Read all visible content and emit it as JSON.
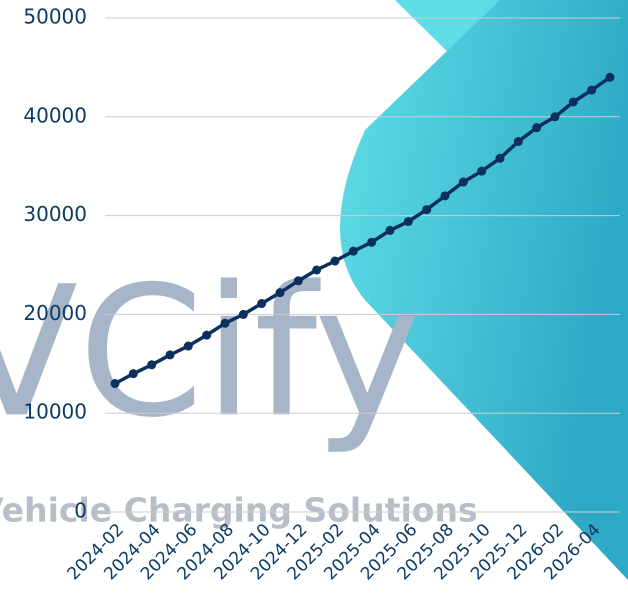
{
  "chart_data": {
    "type": "line",
    "watermark": "VCify",
    "watermark_subtitle": "Vehicle Charging Solutions",
    "categories": [
      "2024-02",
      null,
      "2024-04",
      null,
      "2024-06",
      null,
      "2024-08",
      null,
      "2024-10",
      null,
      "2024-12",
      null,
      "2025-02",
      null,
      "2025-04",
      null,
      "2025-06",
      null,
      "2025-08",
      null,
      "2025-10",
      null,
      "2025-12",
      null,
      "2026-02",
      null,
      "2026-04",
      null
    ],
    "series": [
      {
        "color": "#0b2f5e",
        "values": [
          13000,
          14000,
          14900,
          15900,
          16800,
          17900,
          19100,
          20000,
          21100,
          22200,
          23400,
          24500,
          25400,
          26400,
          27300,
          28500,
          29400,
          30600,
          32000,
          33400,
          34500,
          35800,
          37500,
          38900,
          40000,
          41500,
          42700,
          44000
        ]
      }
    ],
    "ylim": [
      0,
      50000
    ],
    "yticks": [
      0,
      10000,
      20000,
      30000,
      40000,
      50000
    ],
    "grid": true
  }
}
